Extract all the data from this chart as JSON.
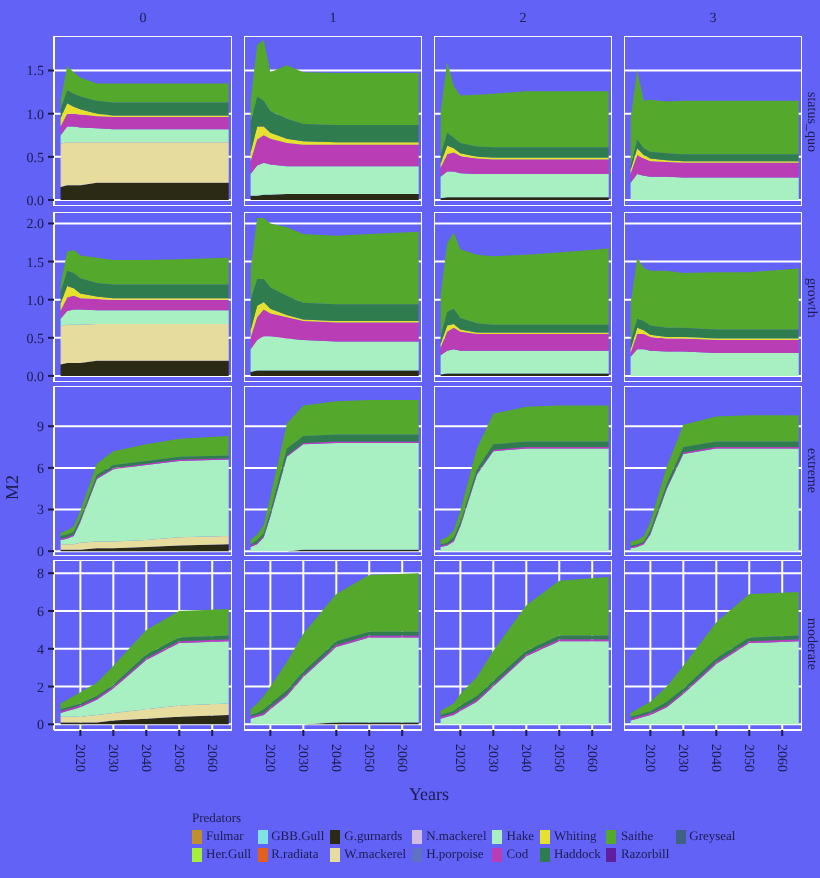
{
  "chart_data": [
    {
      "type": "area",
      "stacked": true,
      "title": "0",
      "tick_labels": "y",
      "grid": true,
      "x": [
        2014,
        2016,
        2018,
        2020,
        2025,
        2030,
        2040,
        2050,
        2065
      ],
      "xlim": [
        2012,
        2066
      ],
      "xticks": [
        2020,
        2030,
        2040,
        2050,
        2060
      ],
      "ylim": [
        -0.07,
        1.9
      ],
      "yticks": [
        {
          "value": 0,
          "label": "0.0"
        },
        {
          "value": 0.5,
          "label": "0.5"
        },
        {
          "value": 1,
          "label": "1.0"
        },
        {
          "value": 1.5,
          "label": "1.5"
        }
      ],
      "series": [
        {
          "color": "#2b2a14",
          "values": [
            0.15,
            0.17,
            0.17,
            0.17,
            0.2,
            0.2,
            0.2,
            0.2,
            0.2
          ]
        },
        {
          "color": "#e6dc9e",
          "values": [
            0.5,
            0.5,
            0.5,
            0.5,
            0.47,
            0.47,
            0.47,
            0.47,
            0.47
          ]
        },
        {
          "color": "#a8f0c2",
          "values": [
            0.1,
            0.18,
            0.18,
            0.17,
            0.16,
            0.15,
            0.15,
            0.15,
            0.15
          ]
        },
        {
          "color": "#b93db4",
          "values": [
            0.1,
            0.15,
            0.15,
            0.15,
            0.14,
            0.14,
            0.14,
            0.14,
            0.14
          ]
        },
        {
          "color": "#e6e02e",
          "values": [
            0.1,
            0.12,
            0.08,
            0.06,
            0.03,
            0.02,
            0.02,
            0.02,
            0.02
          ]
        },
        {
          "color": "#2f7d4e",
          "values": [
            0.1,
            0.15,
            0.15,
            0.15,
            0.15,
            0.15,
            0.15,
            0.15,
            0.15
          ]
        },
        {
          "color": "#54a82c",
          "values": [
            0.1,
            0.28,
            0.25,
            0.22,
            0.2,
            0.22,
            0.22,
            0.22,
            0.22
          ]
        }
      ]
    },
    {
      "type": "area",
      "stacked": true,
      "title": "1",
      "tick_labels": false,
      "grid": true,
      "x": [
        2014,
        2016,
        2018,
        2020,
        2025,
        2030,
        2040,
        2050,
        2065
      ],
      "xlim": [
        2012,
        2066
      ],
      "xticks": [
        2020,
        2030,
        2040,
        2050,
        2060
      ],
      "ylim": [
        -0.07,
        1.9
      ],
      "yticks": [
        0,
        0.5,
        1,
        1.5
      ],
      "series": [
        {
          "color": "#2b2a14",
          "values": [
            0.05,
            0.05,
            0.06,
            0.06,
            0.07,
            0.07,
            0.07,
            0.07,
            0.07
          ]
        },
        {
          "color": "#a8f0c2",
          "values": [
            0.25,
            0.35,
            0.37,
            0.35,
            0.32,
            0.32,
            0.32,
            0.32,
            0.32
          ]
        },
        {
          "color": "#b93db4",
          "values": [
            0.15,
            0.3,
            0.32,
            0.3,
            0.27,
            0.25,
            0.25,
            0.25,
            0.25
          ]
        },
        {
          "color": "#e6e02e",
          "values": [
            0.1,
            0.15,
            0.1,
            0.07,
            0.05,
            0.04,
            0.03,
            0.03,
            0.03
          ]
        },
        {
          "color": "#2f7d4e",
          "values": [
            0.35,
            0.35,
            0.3,
            0.25,
            0.23,
            0.2,
            0.2,
            0.2,
            0.2
          ]
        },
        {
          "color": "#54a82c",
          "values": [
            0.25,
            0.6,
            0.7,
            0.45,
            0.62,
            0.6,
            0.6,
            0.6,
            0.6
          ]
        }
      ]
    },
    {
      "type": "area",
      "stacked": true,
      "title": "2",
      "tick_labels": false,
      "grid": true,
      "x": [
        2014,
        2016,
        2018,
        2020,
        2025,
        2030,
        2040,
        2050,
        2065
      ],
      "xlim": [
        2012,
        2066
      ],
      "xticks": [
        2020,
        2030,
        2040,
        2050,
        2060
      ],
      "ylim": [
        -0.07,
        1.9
      ],
      "yticks": [
        0,
        0.5,
        1,
        1.5
      ],
      "series": [
        {
          "color": "#2b2a14",
          "values": [
            0.02,
            0.03,
            0.03,
            0.03,
            0.03,
            0.03,
            0.03,
            0.03,
            0.03
          ]
        },
        {
          "color": "#a8f0c2",
          "values": [
            0.25,
            0.3,
            0.3,
            0.28,
            0.27,
            0.27,
            0.27,
            0.27,
            0.27
          ]
        },
        {
          "color": "#b93db4",
          "values": [
            0.1,
            0.2,
            0.22,
            0.2,
            0.18,
            0.17,
            0.17,
            0.17,
            0.17
          ]
        },
        {
          "color": "#e6e02e",
          "values": [
            0.05,
            0.1,
            0.05,
            0.03,
            0.02,
            0.02,
            0.02,
            0.02,
            0.02
          ]
        },
        {
          "color": "#2f7d4e",
          "values": [
            0.1,
            0.15,
            0.12,
            0.12,
            0.12,
            0.12,
            0.12,
            0.12,
            0.12
          ]
        },
        {
          "color": "#54a82c",
          "values": [
            0.5,
            0.82,
            0.6,
            0.55,
            0.6,
            0.62,
            0.65,
            0.65,
            0.65
          ]
        }
      ]
    },
    {
      "type": "area",
      "stacked": true,
      "title": "3",
      "subtitle": "status_quo",
      "tick_labels": false,
      "grid": true,
      "x": [
        2014,
        2016,
        2018,
        2020,
        2025,
        2030,
        2040,
        2050,
        2065
      ],
      "xlim": [
        2012,
        2066
      ],
      "xticks": [
        2020,
        2030,
        2040,
        2050,
        2060
      ],
      "ylim": [
        -0.07,
        1.9
      ],
      "yticks": [
        0,
        0.5,
        1,
        1.5
      ],
      "series": [
        {
          "color": "#a8f0c2",
          "values": [
            0.2,
            0.3,
            0.28,
            0.27,
            0.27,
            0.26,
            0.26,
            0.26,
            0.26
          ]
        },
        {
          "color": "#b93db4",
          "values": [
            0.1,
            0.22,
            0.2,
            0.18,
            0.17,
            0.17,
            0.17,
            0.17,
            0.17
          ]
        },
        {
          "color": "#e6e02e",
          "values": [
            0.05,
            0.08,
            0.04,
            0.03,
            0.02,
            0.02,
            0.02,
            0.02,
            0.02
          ]
        },
        {
          "color": "#2f7d4e",
          "values": [
            0.05,
            0.1,
            0.08,
            0.08,
            0.08,
            0.08,
            0.08,
            0.08,
            0.08
          ]
        },
        {
          "color": "#54a82c",
          "values": [
            0.55,
            0.8,
            0.55,
            0.6,
            0.6,
            0.62,
            0.62,
            0.62,
            0.62
          ]
        }
      ]
    },
    {
      "type": "area",
      "stacked": true,
      "ylabel": "M2",
      "tick_labels": "y",
      "grid": true,
      "x": [
        2014,
        2016,
        2018,
        2020,
        2025,
        2030,
        2040,
        2050,
        2065
      ],
      "xlim": [
        2012,
        2066
      ],
      "xticks": [
        2020,
        2030,
        2040,
        2050,
        2060
      ],
      "ylim": [
        -0.08,
        2.15
      ],
      "yticks": [
        {
          "value": 0,
          "label": "0.0"
        },
        {
          "value": 0.5,
          "label": "0.5"
        },
        {
          "value": 1,
          "label": "1.0"
        },
        {
          "value": 1.5,
          "label": "1.5"
        },
        {
          "value": 2,
          "label": "2.0"
        }
      ],
      "series": [
        {
          "color": "#2b2a14",
          "values": [
            0.15,
            0.17,
            0.17,
            0.17,
            0.2,
            0.2,
            0.2,
            0.2,
            0.2
          ]
        },
        {
          "color": "#e6dc9e",
          "values": [
            0.5,
            0.5,
            0.5,
            0.5,
            0.48,
            0.48,
            0.48,
            0.48,
            0.48
          ]
        },
        {
          "color": "#a8f0c2",
          "values": [
            0.1,
            0.18,
            0.2,
            0.2,
            0.18,
            0.18,
            0.18,
            0.18,
            0.18
          ]
        },
        {
          "color": "#b93db4",
          "values": [
            0.1,
            0.18,
            0.18,
            0.15,
            0.15,
            0.14,
            0.14,
            0.14,
            0.14
          ]
        },
        {
          "color": "#e6e02e",
          "values": [
            0.1,
            0.15,
            0.1,
            0.06,
            0.03,
            0.02,
            0.02,
            0.02,
            0.02
          ]
        },
        {
          "color": "#2f7d4e",
          "values": [
            0.15,
            0.2,
            0.2,
            0.2,
            0.18,
            0.18,
            0.18,
            0.18,
            0.18
          ]
        },
        {
          "color": "#54a82c",
          "values": [
            0.1,
            0.25,
            0.3,
            0.3,
            0.33,
            0.32,
            0.32,
            0.33,
            0.35
          ]
        }
      ]
    },
    {
      "type": "area",
      "stacked": true,
      "tick_labels": false,
      "grid": true,
      "x": [
        2014,
        2016,
        2018,
        2020,
        2025,
        2030,
        2040,
        2050,
        2065
      ],
      "xlim": [
        2012,
        2066
      ],
      "xticks": [
        2020,
        2030,
        2040,
        2050,
        2060
      ],
      "ylim": [
        -0.08,
        2.15
      ],
      "yticks": [
        0,
        0.5,
        1,
        1.5,
        2
      ],
      "series": [
        {
          "color": "#2b2a14",
          "values": [
            0.05,
            0.07,
            0.07,
            0.07,
            0.07,
            0.07,
            0.07,
            0.07,
            0.07
          ]
        },
        {
          "color": "#a8f0c2",
          "values": [
            0.3,
            0.4,
            0.45,
            0.45,
            0.42,
            0.4,
            0.38,
            0.38,
            0.38
          ]
        },
        {
          "color": "#b93db4",
          "values": [
            0.15,
            0.3,
            0.35,
            0.3,
            0.28,
            0.25,
            0.25,
            0.25,
            0.25
          ]
        },
        {
          "color": "#e6e02e",
          "values": [
            0.1,
            0.15,
            0.1,
            0.06,
            0.03,
            0.02,
            0.02,
            0.02,
            0.02
          ]
        },
        {
          "color": "#2f7d4e",
          "values": [
            0.4,
            0.35,
            0.3,
            0.28,
            0.25,
            0.22,
            0.22,
            0.22,
            0.22
          ]
        },
        {
          "color": "#54a82c",
          "values": [
            0.4,
            0.8,
            0.8,
            0.84,
            0.9,
            0.9,
            0.9,
            0.92,
            0.95
          ]
        }
      ]
    },
    {
      "type": "area",
      "stacked": true,
      "tick_labels": false,
      "grid": true,
      "x": [
        2014,
        2016,
        2018,
        2020,
        2025,
        2030,
        2040,
        2050,
        2065
      ],
      "xlim": [
        2012,
        2066
      ],
      "xticks": [
        2020,
        2030,
        2040,
        2050,
        2060
      ],
      "ylim": [
        -0.08,
        2.15
      ],
      "yticks": [
        0,
        0.5,
        1,
        1.5,
        2
      ],
      "series": [
        {
          "color": "#2b2a14",
          "values": [
            0.02,
            0.03,
            0.03,
            0.03,
            0.03,
            0.03,
            0.03,
            0.03,
            0.03
          ]
        },
        {
          "color": "#a8f0c2",
          "values": [
            0.25,
            0.3,
            0.32,
            0.3,
            0.3,
            0.3,
            0.3,
            0.3,
            0.3
          ]
        },
        {
          "color": "#b93db4",
          "values": [
            0.1,
            0.25,
            0.28,
            0.25,
            0.22,
            0.22,
            0.22,
            0.22,
            0.22
          ]
        },
        {
          "color": "#e6e02e",
          "values": [
            0.05,
            0.08,
            0.05,
            0.03,
            0.02,
            0.02,
            0.02,
            0.02,
            0.02
          ]
        },
        {
          "color": "#2f7d4e",
          "values": [
            0.1,
            0.18,
            0.2,
            0.15,
            0.12,
            0.1,
            0.1,
            0.1,
            0.1
          ]
        },
        {
          "color": "#54a82c",
          "values": [
            0.55,
            0.9,
            1.0,
            0.9,
            0.9,
            0.9,
            0.92,
            0.95,
            1.0
          ]
        }
      ]
    },
    {
      "type": "area",
      "stacked": true,
      "subtitle": "growth",
      "tick_labels": false,
      "grid": true,
      "x": [
        2014,
        2016,
        2018,
        2020,
        2025,
        2030,
        2040,
        2050,
        2065
      ],
      "xlim": [
        2012,
        2066
      ],
      "xticks": [
        2020,
        2030,
        2040,
        2050,
        2060
      ],
      "ylim": [
        -0.08,
        2.15
      ],
      "yticks": [
        0,
        0.5,
        1,
        1.5,
        2
      ],
      "series": [
        {
          "color": "#a8f0c2",
          "values": [
            0.25,
            0.35,
            0.35,
            0.33,
            0.32,
            0.32,
            0.3,
            0.3,
            0.3
          ]
        },
        {
          "color": "#b93db4",
          "values": [
            0.05,
            0.2,
            0.2,
            0.18,
            0.17,
            0.17,
            0.17,
            0.17,
            0.17
          ]
        },
        {
          "color": "#e6e02e",
          "values": [
            0.05,
            0.08,
            0.05,
            0.03,
            0.02,
            0.02,
            0.02,
            0.02,
            0.02
          ]
        },
        {
          "color": "#2f7d4e",
          "values": [
            0.1,
            0.12,
            0.12,
            0.12,
            0.12,
            0.12,
            0.12,
            0.12,
            0.12
          ]
        },
        {
          "color": "#54a82c",
          "values": [
            0.5,
            0.8,
            0.7,
            0.72,
            0.75,
            0.72,
            0.75,
            0.75,
            0.8
          ]
        }
      ]
    },
    {
      "type": "area",
      "stacked": true,
      "tick_labels": "y",
      "grid": true,
      "x": [
        2014,
        2016,
        2018,
        2020,
        2025,
        2030,
        2040,
        2050,
        2065
      ],
      "xlim": [
        2012,
        2066
      ],
      "xticks": [
        2020,
        2030,
        2040,
        2050,
        2060
      ],
      "ylim": [
        -0.35,
        11.9
      ],
      "yticks": [
        0,
        3,
        6,
        9
      ],
      "series": [
        {
          "color": "#2b2a14",
          "values": [
            0.1,
            0.1,
            0.1,
            0.1,
            0.2,
            0.2,
            0.3,
            0.4,
            0.5
          ]
        },
        {
          "color": "#e6dc9e",
          "values": [
            0.4,
            0.4,
            0.4,
            0.5,
            0.5,
            0.5,
            0.5,
            0.6,
            0.6
          ]
        },
        {
          "color": "#a8f0c2",
          "values": [
            0.3,
            0.4,
            0.6,
            1.5,
            4.5,
            5.2,
            5.4,
            5.5,
            5.5
          ]
        },
        {
          "color": "#b93db4",
          "values": [
            0.1,
            0.1,
            0.1,
            0.1,
            0.1,
            0.1,
            0.1,
            0.1,
            0.1
          ]
        },
        {
          "color": "#2f7d4e",
          "values": [
            0.2,
            0.2,
            0.2,
            0.2,
            0.2,
            0.2,
            0.2,
            0.2,
            0.2
          ]
        },
        {
          "color": "#54a82c",
          "values": [
            0.2,
            0.3,
            0.4,
            0.5,
            0.8,
            1.0,
            1.2,
            1.3,
            1.4
          ]
        }
      ]
    },
    {
      "type": "area",
      "stacked": true,
      "tick_labels": false,
      "grid": true,
      "x": [
        2014,
        2016,
        2018,
        2020,
        2025,
        2030,
        2040,
        2050,
        2065
      ],
      "xlim": [
        2012,
        2066
      ],
      "xticks": [
        2020,
        2030,
        2040,
        2050,
        2060
      ],
      "ylim": [
        -0.35,
        11.9
      ],
      "yticks": [
        0,
        3,
        6,
        9
      ],
      "series": [
        {
          "color": "#2b2a14",
          "values": [
            0,
            0,
            0,
            0,
            0,
            0.1,
            0.1,
            0.1,
            0.1
          ]
        },
        {
          "color": "#a8f0c2",
          "values": [
            0.3,
            0.5,
            1.0,
            2.5,
            6.8,
            7.6,
            7.7,
            7.7,
            7.7
          ]
        },
        {
          "color": "#b93db4",
          "values": [
            0.1,
            0.1,
            0.1,
            0.1,
            0.1,
            0.1,
            0.1,
            0.1,
            0.1
          ]
        },
        {
          "color": "#2f7d4e",
          "values": [
            0.1,
            0.2,
            0.2,
            0.3,
            0.5,
            0.5,
            0.5,
            0.5,
            0.5
          ]
        },
        {
          "color": "#54a82c",
          "values": [
            0.3,
            0.4,
            0.6,
            1.0,
            1.8,
            2.2,
            2.4,
            2.5,
            2.5
          ]
        }
      ]
    },
    {
      "type": "area",
      "stacked": true,
      "tick_labels": false,
      "grid": true,
      "x": [
        2014,
        2016,
        2018,
        2020,
        2025,
        2030,
        2040,
        2050,
        2065
      ],
      "xlim": [
        2012,
        2066
      ],
      "xticks": [
        2020,
        2030,
        2040,
        2050,
        2060
      ],
      "ylim": [
        -0.35,
        11.9
      ],
      "yticks": [
        0,
        3,
        6,
        9
      ],
      "series": [
        {
          "color": "#a8f0c2",
          "values": [
            0.3,
            0.4,
            0.7,
            1.8,
            5.5,
            7.2,
            7.4,
            7.4,
            7.4
          ]
        },
        {
          "color": "#b93db4",
          "values": [
            0.1,
            0.1,
            0.1,
            0.1,
            0.1,
            0.1,
            0.1,
            0.1,
            0.1
          ]
        },
        {
          "color": "#2f7d4e",
          "values": [
            0.1,
            0.1,
            0.2,
            0.2,
            0.3,
            0.4,
            0.4,
            0.4,
            0.4
          ]
        },
        {
          "color": "#54a82c",
          "values": [
            0.3,
            0.4,
            0.5,
            0.8,
            1.5,
            2.2,
            2.5,
            2.6,
            2.6
          ]
        }
      ]
    },
    {
      "type": "area",
      "stacked": true,
      "subtitle": "extreme",
      "tick_labels": false,
      "grid": true,
      "x": [
        2014,
        2016,
        2018,
        2020,
        2025,
        2030,
        2040,
        2050,
        2065
      ],
      "xlim": [
        2012,
        2066
      ],
      "xticks": [
        2020,
        2030,
        2040,
        2050,
        2060
      ],
      "ylim": [
        -0.35,
        11.9
      ],
      "yticks": [
        0,
        3,
        6,
        9
      ],
      "series": [
        {
          "color": "#a8f0c2",
          "values": [
            0.2,
            0.3,
            0.5,
            1.2,
            4.5,
            7.0,
            7.4,
            7.4,
            7.4
          ]
        },
        {
          "color": "#b93db4",
          "values": [
            0.1,
            0.1,
            0.1,
            0.1,
            0.1,
            0.1,
            0.1,
            0.1,
            0.1
          ]
        },
        {
          "color": "#2f7d4e",
          "values": [
            0.1,
            0.1,
            0.1,
            0.2,
            0.3,
            0.4,
            0.4,
            0.4,
            0.4
          ]
        },
        {
          "color": "#54a82c",
          "values": [
            0.3,
            0.3,
            0.4,
            0.6,
            1.2,
            1.6,
            1.8,
            1.9,
            1.9
          ]
        }
      ]
    },
    {
      "type": "area",
      "stacked": true,
      "grid": true,
      "x": [
        2014,
        2016,
        2018,
        2020,
        2025,
        2030,
        2040,
        2050,
        2065
      ],
      "xlim": [
        2012,
        2066
      ],
      "xticks": [
        2020,
        2030,
        2040,
        2050,
        2060
      ],
      "ylim": [
        -0.3,
        8.7
      ],
      "yticks": [
        0,
        2,
        4,
        6,
        8
      ],
      "series": [
        {
          "color": "#2b2a14",
          "values": [
            0.1,
            0.1,
            0.1,
            0.1,
            0.1,
            0.2,
            0.3,
            0.4,
            0.5
          ]
        },
        {
          "color": "#e6dc9e",
          "values": [
            0.3,
            0.3,
            0.3,
            0.3,
            0.4,
            0.4,
            0.5,
            0.6,
            0.6
          ]
        },
        {
          "color": "#a8f0c2",
          "values": [
            0.2,
            0.3,
            0.4,
            0.5,
            0.8,
            1.3,
            2.6,
            3.3,
            3.3
          ]
        },
        {
          "color": "#b93db4",
          "values": [
            0.1,
            0.1,
            0.1,
            0.1,
            0.1,
            0.1,
            0.1,
            0.1,
            0.1
          ]
        },
        {
          "color": "#2f7d4e",
          "values": [
            0.1,
            0.1,
            0.1,
            0.1,
            0.1,
            0.1,
            0.2,
            0.2,
            0.2
          ]
        },
        {
          "color": "#54a82c",
          "values": [
            0.3,
            0.4,
            0.5,
            0.6,
            0.7,
            1.0,
            1.3,
            1.4,
            1.4
          ]
        }
      ]
    },
    {
      "type": "area",
      "stacked": true,
      "xlabel": "Years",
      "tick_labels": "x",
      "grid": true,
      "x": [
        2014,
        2016,
        2018,
        2020,
        2025,
        2030,
        2040,
        2050,
        2065
      ],
      "xlim": [
        2012,
        2066
      ],
      "xticks": [
        2020,
        2030,
        2040,
        2050,
        2060
      ],
      "ylim": [
        -0.3,
        8.7
      ],
      "yticks": [
        0,
        2,
        4,
        6,
        8
      ],
      "series": [
        {
          "color": "#2b2a14",
          "values": [
            0,
            0,
            0,
            0,
            0,
            0,
            0.1,
            0.1,
            0.1
          ]
        },
        {
          "color": "#a8f0c2",
          "values": [
            0.3,
            0.4,
            0.5,
            0.8,
            1.5,
            2.5,
            4.0,
            4.5,
            4.5
          ]
        },
        {
          "color": "#b93db4",
          "values": [
            0.1,
            0.1,
            0.1,
            0.1,
            0.1,
            0.1,
            0.1,
            0.1,
            0.1
          ]
        },
        {
          "color": "#2f7d4e",
          "values": [
            0.1,
            0.1,
            0.2,
            0.2,
            0.2,
            0.2,
            0.2,
            0.2,
            0.2
          ]
        },
        {
          "color": "#54a82c",
          "values": [
            0.3,
            0.5,
            0.7,
            0.9,
            1.5,
            2.0,
            2.5,
            3.0,
            3.1
          ]
        }
      ]
    },
    {
      "type": "area",
      "stacked": true,
      "tick_labels": "x",
      "grid": true,
      "x": [
        2014,
        2016,
        2018,
        2020,
        2025,
        2030,
        2040,
        2050,
        2065
      ],
      "xlim": [
        2012,
        2066
      ],
      "xticks": [
        2020,
        2030,
        2040,
        2050,
        2060
      ],
      "ylim": [
        -0.3,
        8.7
      ],
      "yticks": [
        0,
        2,
        4,
        6,
        8
      ],
      "series": [
        {
          "color": "#a8f0c2",
          "values": [
            0.3,
            0.4,
            0.5,
            0.7,
            1.2,
            2.0,
            3.6,
            4.4,
            4.4
          ]
        },
        {
          "color": "#b93db4",
          "values": [
            0.1,
            0.1,
            0.1,
            0.1,
            0.1,
            0.1,
            0.1,
            0.1,
            0.1
          ]
        },
        {
          "color": "#2f7d4e",
          "values": [
            0.1,
            0.1,
            0.1,
            0.2,
            0.2,
            0.2,
            0.2,
            0.2,
            0.2
          ]
        },
        {
          "color": "#54a82c",
          "values": [
            0.2,
            0.3,
            0.4,
            0.6,
            1.0,
            1.6,
            2.4,
            2.9,
            3.1
          ]
        }
      ]
    },
    {
      "type": "area",
      "stacked": true,
      "subtitle": "moderate",
      "tick_labels": "x",
      "grid": true,
      "legend": "bottom",
      "legend_title": "Predators",
      "x": [
        2014,
        2016,
        2018,
        2020,
        2025,
        2030,
        2040,
        2050,
        2065
      ],
      "xlim": [
        2012,
        2066
      ],
      "xticks": [
        2020,
        2030,
        2040,
        2050,
        2060
      ],
      "ylim": [
        -0.3,
        8.7
      ],
      "yticks": [
        0,
        2,
        4,
        6,
        8
      ],
      "series": [
        {
          "name": "Fulmar",
          "color": "#c0902e",
          "values": [
            null,
            null,
            null,
            null,
            null,
            null,
            null,
            null,
            null
          ]
        },
        {
          "name": "Her.Gull",
          "color": "#a4ee3c",
          "values": [
            null,
            null,
            null,
            null,
            null,
            null,
            null,
            null,
            null
          ]
        },
        {
          "name": "GBB.Gull",
          "color": "#80e2e2",
          "values": [
            null,
            null,
            null,
            null,
            null,
            null,
            null,
            null,
            null
          ]
        },
        {
          "name": "R.radiata",
          "color": "#e0601e",
          "values": [
            null,
            null,
            null,
            null,
            null,
            null,
            null,
            null,
            null
          ]
        },
        {
          "name": "G.gurnards",
          "color": "#2b2a14",
          "values": [
            null,
            null,
            null,
            null,
            null,
            null,
            null,
            null,
            null
          ]
        },
        {
          "name": "W.mackerel",
          "color": "#e6dc9e",
          "values": [
            null,
            null,
            null,
            null,
            null,
            null,
            null,
            null,
            null
          ]
        },
        {
          "name": "N.mackerel",
          "color": "#d2bce6",
          "values": [
            null,
            null,
            null,
            null,
            null,
            null,
            null,
            null,
            null
          ]
        },
        {
          "name": "H.porpoise",
          "color": "#6072c6",
          "values": [
            null,
            null,
            null,
            null,
            null,
            null,
            null,
            null,
            null
          ]
        },
        {
          "name": "Hake",
          "color": "#a8f0c2",
          "values": [
            0.2,
            0.3,
            0.4,
            0.5,
            0.9,
            1.6,
            3.2,
            4.3,
            4.4
          ]
        },
        {
          "name": "Cod",
          "color": "#b93db4",
          "values": [
            0.1,
            0.1,
            0.1,
            0.1,
            0.1,
            0.1,
            0.1,
            0.1,
            0.1
          ]
        },
        {
          "name": "Whiting",
          "color": "#e6e02e",
          "values": [
            null,
            null,
            null,
            null,
            null,
            null,
            null,
            null,
            null
          ]
        },
        {
          "name": "Haddock",
          "color": "#2f7d4e",
          "values": [
            0.1,
            0.1,
            0.1,
            0.1,
            0.2,
            0.2,
            0.2,
            0.2,
            0.2
          ]
        },
        {
          "name": "Saithe",
          "color": "#54a82c",
          "values": [
            0.2,
            0.3,
            0.4,
            0.5,
            0.8,
            1.2,
            1.9,
            2.3,
            2.3
          ]
        },
        {
          "name": "Razorbill",
          "color": "#5e1fa0",
          "values": [
            null,
            null,
            null,
            null,
            null,
            null,
            null,
            null,
            null
          ]
        },
        {
          "name": "Greyseal",
          "color": "#3f6182",
          "values": [
            null,
            null,
            null,
            null,
            null,
            null,
            null,
            null,
            null
          ]
        }
      ]
    }
  ]
}
